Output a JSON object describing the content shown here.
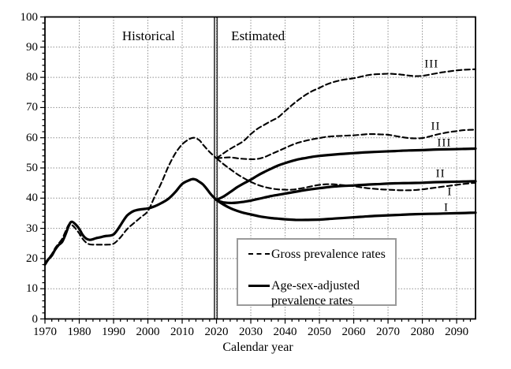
{
  "chart_data": {
    "type": "line",
    "title": "",
    "xlabel": "Calendar year",
    "ylabel": "",
    "x_range": [
      1970,
      2095.5
    ],
    "y_range": [
      0,
      100
    ],
    "x_ticks": [
      1970,
      1980,
      1990,
      2000,
      2010,
      2020,
      2030,
      2040,
      2050,
      2060,
      2070,
      2080,
      2090
    ],
    "y_ticks": [
      0,
      10,
      20,
      30,
      40,
      50,
      60,
      70,
      80,
      90,
      100
    ],
    "minor_tick_step_x": 2,
    "minor_tick_step_y": 2,
    "grid": "dotted",
    "grid_color": "#8f8f8f",
    "line_color": "#000000",
    "divider_year": 2019.8,
    "region_labels": [
      {
        "text": "Historical",
        "year": 2000.2,
        "value": 93.5
      },
      {
        "text": "Estimated",
        "year": 2032.1,
        "value": 93.5
      }
    ],
    "curve_labels": [
      {
        "text": "III",
        "year": 2082.7,
        "value": 84.1
      },
      {
        "text": "II",
        "year": 2083.9,
        "value": 63.7
      },
      {
        "text": "III",
        "year": 2086.4,
        "value": 58.0
      },
      {
        "text": "II",
        "year": 2085.3,
        "value": 47.8
      },
      {
        "text": "I",
        "year": 2088.0,
        "value": 42.0
      },
      {
        "text": "I",
        "year": 2087.0,
        "value": 36.6
      }
    ],
    "legend": {
      "items": [
        {
          "style": "dashed",
          "label": "Gross prevalence rates"
        },
        {
          "style": "solid",
          "label": "Age-sex-adjusted prevalence rates"
        }
      ]
    },
    "series": [
      {
        "name": "gross-historical",
        "style": "dashed",
        "points": [
          [
            1970,
            18.5
          ],
          [
            1971,
            20
          ],
          [
            1972,
            21.5
          ],
          [
            1973,
            23.5
          ],
          [
            1974,
            25
          ],
          [
            1975,
            26.5
          ],
          [
            1976,
            29
          ],
          [
            1977,
            31.3
          ],
          [
            1978,
            31
          ],
          [
            1979,
            29.8
          ],
          [
            1980,
            28.3
          ],
          [
            1981,
            26.5
          ],
          [
            1982,
            25.3
          ],
          [
            1983,
            24.7
          ],
          [
            1984,
            24.6
          ],
          [
            1986,
            24.6
          ],
          [
            1988,
            24.6
          ],
          [
            1990,
            24.9
          ],
          [
            1992,
            27
          ],
          [
            1994,
            29.8
          ],
          [
            1996,
            31.8
          ],
          [
            1998,
            33.7
          ],
          [
            2000,
            35.7
          ],
          [
            2002,
            40.5
          ],
          [
            2004,
            45.2
          ],
          [
            2006,
            50.5
          ],
          [
            2008,
            54.8
          ],
          [
            2010,
            57.8
          ],
          [
            2012,
            59.5
          ],
          [
            2013.5,
            60
          ],
          [
            2015,
            59.2
          ],
          [
            2016,
            57.8
          ],
          [
            2018,
            55.3
          ],
          [
            2020,
            53.2
          ]
        ]
      },
      {
        "name": "adjusted-historical",
        "style": "solid",
        "points": [
          [
            1970,
            18
          ],
          [
            1971,
            19.8
          ],
          [
            1972,
            21
          ],
          [
            1973,
            23
          ],
          [
            1974,
            24.5
          ],
          [
            1975,
            25.5
          ],
          [
            1976,
            28
          ],
          [
            1977,
            31
          ],
          [
            1977.8,
            32.2
          ],
          [
            1979,
            31.2
          ],
          [
            1980,
            29.8
          ],
          [
            1981,
            27.8
          ],
          [
            1982,
            26.6
          ],
          [
            1983,
            26.2
          ],
          [
            1984,
            26.4
          ],
          [
            1985,
            26.8
          ],
          [
            1986,
            27
          ],
          [
            1987,
            27.3
          ],
          [
            1988,
            27.5
          ],
          [
            1989,
            27.6
          ],
          [
            1990,
            28
          ],
          [
            1991,
            29.3
          ],
          [
            1992,
            31
          ],
          [
            1993,
            32.8
          ],
          [
            1994,
            34.3
          ],
          [
            1995,
            35.2
          ],
          [
            1996,
            35.8
          ],
          [
            1997,
            36.1
          ],
          [
            1998,
            36.3
          ],
          [
            2000,
            36.6
          ],
          [
            2002,
            37.3
          ],
          [
            2004,
            38.4
          ],
          [
            2006,
            39.8
          ],
          [
            2008,
            42
          ],
          [
            2010,
            44.7
          ],
          [
            2012,
            45.9
          ],
          [
            2013,
            46.3
          ],
          [
            2014,
            46.1
          ],
          [
            2015,
            45.4
          ],
          [
            2016,
            44.6
          ],
          [
            2017,
            43.3
          ],
          [
            2018,
            41.8
          ],
          [
            2019,
            40.5
          ],
          [
            2020,
            39.4
          ]
        ]
      },
      {
        "name": "gross-III",
        "style": "dashed",
        "points": [
          [
            2020,
            53.2
          ],
          [
            2022,
            54.8
          ],
          [
            2024,
            56.3
          ],
          [
            2026,
            57.6
          ],
          [
            2028,
            59
          ],
          [
            2030,
            61.2
          ],
          [
            2032,
            63
          ],
          [
            2034,
            64.3
          ],
          [
            2036,
            65.6
          ],
          [
            2038,
            66.8
          ],
          [
            2040,
            68.8
          ],
          [
            2042,
            70.8
          ],
          [
            2044,
            72.6
          ],
          [
            2046,
            74.2
          ],
          [
            2048,
            75.5
          ],
          [
            2050,
            76.5
          ],
          [
            2052,
            77.6
          ],
          [
            2054,
            78.4
          ],
          [
            2056,
            79
          ],
          [
            2058,
            79.4
          ],
          [
            2060,
            79.7
          ],
          [
            2062,
            80.2
          ],
          [
            2064,
            80.7
          ],
          [
            2066,
            81
          ],
          [
            2068,
            81.1
          ],
          [
            2070,
            81.2
          ],
          [
            2072,
            81.1
          ],
          [
            2074,
            80.9
          ],
          [
            2076,
            80.6
          ],
          [
            2078,
            80.4
          ],
          [
            2080,
            80.5
          ],
          [
            2082,
            80.9
          ],
          [
            2084,
            81.3
          ],
          [
            2086,
            81.7
          ],
          [
            2088,
            82
          ],
          [
            2090,
            82.3
          ],
          [
            2092,
            82.5
          ],
          [
            2095.5,
            82.7
          ]
        ]
      },
      {
        "name": "gross-II",
        "style": "dashed",
        "points": [
          [
            2020,
            53.2
          ],
          [
            2022,
            53.4
          ],
          [
            2024,
            53.5
          ],
          [
            2026,
            53.2
          ],
          [
            2028,
            53
          ],
          [
            2030,
            52.9
          ],
          [
            2032,
            53
          ],
          [
            2034,
            53.6
          ],
          [
            2036,
            54.6
          ],
          [
            2038,
            55.6
          ],
          [
            2040,
            56.6
          ],
          [
            2042,
            57.6
          ],
          [
            2044,
            58.4
          ],
          [
            2046,
            59
          ],
          [
            2048,
            59.5
          ],
          [
            2050,
            59.9
          ],
          [
            2052,
            60.3
          ],
          [
            2054,
            60.5
          ],
          [
            2056,
            60.6
          ],
          [
            2058,
            60.7
          ],
          [
            2060,
            60.8
          ],
          [
            2062,
            61
          ],
          [
            2064,
            61.2
          ],
          [
            2066,
            61.2
          ],
          [
            2068,
            61.1
          ],
          [
            2070,
            61
          ],
          [
            2072,
            60.6
          ],
          [
            2074,
            60.2
          ],
          [
            2076,
            59.9
          ],
          [
            2078,
            59.8
          ],
          [
            2080,
            59.9
          ],
          [
            2082,
            60.4
          ],
          [
            2084,
            61
          ],
          [
            2086,
            61.5
          ],
          [
            2088,
            61.9
          ],
          [
            2090,
            62.2
          ],
          [
            2092,
            62.5
          ],
          [
            2095.5,
            62.7
          ]
        ]
      },
      {
        "name": "gross-I",
        "style": "dashed",
        "points": [
          [
            2020,
            53.2
          ],
          [
            2022,
            51.3
          ],
          [
            2024,
            49.6
          ],
          [
            2026,
            48
          ],
          [
            2028,
            46.6
          ],
          [
            2030,
            45.4
          ],
          [
            2032,
            44.4
          ],
          [
            2034,
            43.7
          ],
          [
            2036,
            43.2
          ],
          [
            2038,
            42.9
          ],
          [
            2040,
            42.8
          ],
          [
            2042,
            42.8
          ],
          [
            2044,
            43.1
          ],
          [
            2046,
            43.5
          ],
          [
            2048,
            44
          ],
          [
            2050,
            44.4
          ],
          [
            2052,
            44.6
          ],
          [
            2054,
            44.6
          ],
          [
            2056,
            44.4
          ],
          [
            2058,
            44.2
          ],
          [
            2060,
            44
          ],
          [
            2062,
            43.6
          ],
          [
            2064,
            43.3
          ],
          [
            2066,
            43.1
          ],
          [
            2068,
            42.9
          ],
          [
            2070,
            42.8
          ],
          [
            2072,
            42.7
          ],
          [
            2074,
            42.6
          ],
          [
            2076,
            42.6
          ],
          [
            2078,
            42.7
          ],
          [
            2080,
            42.9
          ],
          [
            2082,
            43.2
          ],
          [
            2084,
            43.5
          ],
          [
            2086,
            43.8
          ],
          [
            2088,
            44.1
          ],
          [
            2090,
            44.4
          ],
          [
            2092,
            44.7
          ],
          [
            2095.5,
            45.1
          ]
        ]
      },
      {
        "name": "adjusted-III",
        "style": "solid",
        "points": [
          [
            2020,
            39.4
          ],
          [
            2022,
            40.5
          ],
          [
            2024,
            42
          ],
          [
            2026,
            43.6
          ],
          [
            2028,
            44.9
          ],
          [
            2030,
            46.1
          ],
          [
            2032,
            47.5
          ],
          [
            2034,
            48.7
          ],
          [
            2036,
            49.8
          ],
          [
            2038,
            50.8
          ],
          [
            2040,
            51.6
          ],
          [
            2042,
            52.3
          ],
          [
            2044,
            52.9
          ],
          [
            2046,
            53.3
          ],
          [
            2048,
            53.7
          ],
          [
            2050,
            54
          ],
          [
            2053,
            54.3
          ],
          [
            2056,
            54.6
          ],
          [
            2060,
            54.9
          ],
          [
            2064,
            55.2
          ],
          [
            2068,
            55.4
          ],
          [
            2072,
            55.6
          ],
          [
            2076,
            55.8
          ],
          [
            2080,
            55.9
          ],
          [
            2084,
            56.1
          ],
          [
            2088,
            56.2
          ],
          [
            2092,
            56.3
          ],
          [
            2095.5,
            56.4
          ]
        ]
      },
      {
        "name": "adjusted-II",
        "style": "solid",
        "points": [
          [
            2020,
            39.4
          ],
          [
            2021,
            38.9
          ],
          [
            2022,
            38.6
          ],
          [
            2024,
            38.4
          ],
          [
            2026,
            38.5
          ],
          [
            2028,
            38.8
          ],
          [
            2030,
            39.2
          ],
          [
            2032,
            39.7
          ],
          [
            2034,
            40.2
          ],
          [
            2036,
            40.7
          ],
          [
            2038,
            41.1
          ],
          [
            2040,
            41.5
          ],
          [
            2042,
            41.9
          ],
          [
            2044,
            42.3
          ],
          [
            2046,
            42.7
          ],
          [
            2048,
            43
          ],
          [
            2050,
            43.3
          ],
          [
            2053,
            43.7
          ],
          [
            2056,
            44
          ],
          [
            2060,
            44.2
          ],
          [
            2064,
            44.5
          ],
          [
            2068,
            44.7
          ],
          [
            2072,
            44.9
          ],
          [
            2076,
            45
          ],
          [
            2080,
            45.1
          ],
          [
            2084,
            45.3
          ],
          [
            2088,
            45.4
          ],
          [
            2092,
            45.5
          ],
          [
            2095.5,
            45.6
          ]
        ]
      },
      {
        "name": "adjusted-I",
        "style": "solid",
        "points": [
          [
            2020,
            39.4
          ],
          [
            2021,
            38.6
          ],
          [
            2022,
            37.9
          ],
          [
            2024,
            36.7
          ],
          [
            2026,
            35.8
          ],
          [
            2028,
            35.1
          ],
          [
            2030,
            34.6
          ],
          [
            2032,
            34.1
          ],
          [
            2034,
            33.7
          ],
          [
            2036,
            33.4
          ],
          [
            2038,
            33.2
          ],
          [
            2040,
            33
          ],
          [
            2043,
            32.8
          ],
          [
            2046,
            32.8
          ],
          [
            2050,
            32.9
          ],
          [
            2054,
            33.2
          ],
          [
            2058,
            33.5
          ],
          [
            2062,
            33.8
          ],
          [
            2066,
            34.1
          ],
          [
            2070,
            34.3
          ],
          [
            2074,
            34.5
          ],
          [
            2078,
            34.7
          ],
          [
            2082,
            34.8
          ],
          [
            2086,
            34.9
          ],
          [
            2090,
            35
          ],
          [
            2095.5,
            35.2
          ]
        ]
      }
    ]
  }
}
